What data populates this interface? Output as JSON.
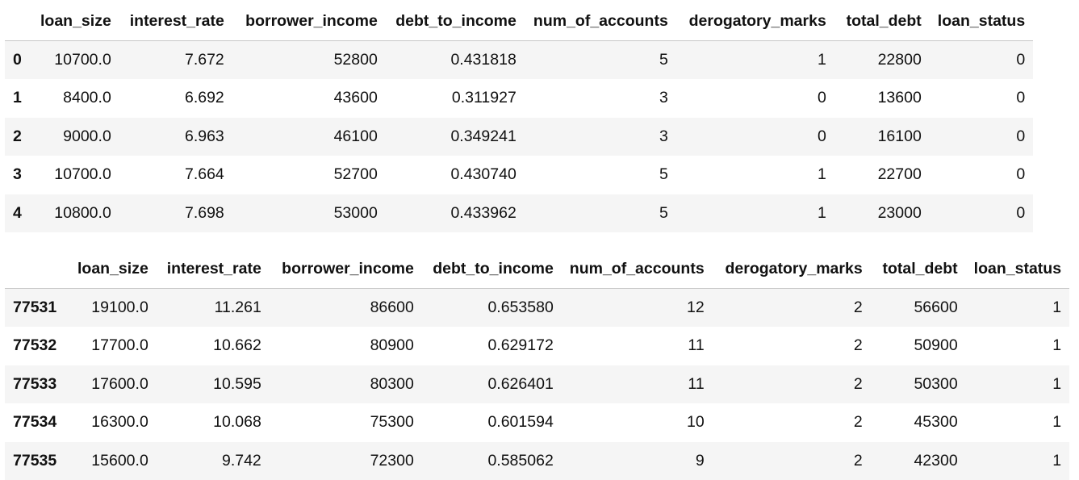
{
  "tables": [
    {
      "columns": [
        "loan_size",
        "interest_rate",
        "borrower_income",
        "debt_to_income",
        "num_of_accounts",
        "derogatory_marks",
        "total_debt",
        "loan_status"
      ],
      "rows": [
        {
          "index": "0",
          "cells": [
            "10700.0",
            "7.672",
            "52800",
            "0.431818",
            "5",
            "1",
            "22800",
            "0"
          ]
        },
        {
          "index": "1",
          "cells": [
            "8400.0",
            "6.692",
            "43600",
            "0.311927",
            "3",
            "0",
            "13600",
            "0"
          ]
        },
        {
          "index": "2",
          "cells": [
            "9000.0",
            "6.963",
            "46100",
            "0.349241",
            "3",
            "0",
            "16100",
            "0"
          ]
        },
        {
          "index": "3",
          "cells": [
            "10700.0",
            "7.664",
            "52700",
            "0.430740",
            "5",
            "1",
            "22700",
            "0"
          ]
        },
        {
          "index": "4",
          "cells": [
            "10800.0",
            "7.698",
            "53000",
            "0.433962",
            "5",
            "1",
            "23000",
            "0"
          ]
        }
      ]
    },
    {
      "columns": [
        "loan_size",
        "interest_rate",
        "borrower_income",
        "debt_to_income",
        "num_of_accounts",
        "derogatory_marks",
        "total_debt",
        "loan_status"
      ],
      "rows": [
        {
          "index": "77531",
          "cells": [
            "19100.0",
            "11.261",
            "86600",
            "0.653580",
            "12",
            "2",
            "56600",
            "1"
          ]
        },
        {
          "index": "77532",
          "cells": [
            "17700.0",
            "10.662",
            "80900",
            "0.629172",
            "11",
            "2",
            "50900",
            "1"
          ]
        },
        {
          "index": "77533",
          "cells": [
            "17600.0",
            "10.595",
            "80300",
            "0.626401",
            "11",
            "2",
            "50300",
            "1"
          ]
        },
        {
          "index": "77534",
          "cells": [
            "16300.0",
            "10.068",
            "75300",
            "0.601594",
            "10",
            "2",
            "45300",
            "1"
          ]
        },
        {
          "index": "77535",
          "cells": [
            "15600.0",
            "9.742",
            "72300",
            "0.585062",
            "9",
            "2",
            "42300",
            "1"
          ]
        }
      ]
    }
  ],
  "chart_data": {
    "type": "table",
    "tables": [
      {
        "columns": [
          "loan_size",
          "interest_rate",
          "borrower_income",
          "debt_to_income",
          "num_of_accounts",
          "derogatory_marks",
          "total_debt",
          "loan_status"
        ],
        "index": [
          "0",
          "1",
          "2",
          "3",
          "4"
        ],
        "values": [
          [
            10700.0,
            7.672,
            52800,
            0.431818,
            5,
            1,
            22800,
            0
          ],
          [
            8400.0,
            6.692,
            43600,
            0.311927,
            3,
            0,
            13600,
            0
          ],
          [
            9000.0,
            6.963,
            46100,
            0.349241,
            3,
            0,
            16100,
            0
          ],
          [
            10700.0,
            7.664,
            52700,
            0.43074,
            5,
            1,
            22700,
            0
          ],
          [
            10800.0,
            7.698,
            53000,
            0.433962,
            5,
            1,
            23000,
            0
          ]
        ]
      },
      {
        "columns": [
          "loan_size",
          "interest_rate",
          "borrower_income",
          "debt_to_income",
          "num_of_accounts",
          "derogatory_marks",
          "total_debt",
          "loan_status"
        ],
        "index": [
          "77531",
          "77532",
          "77533",
          "77534",
          "77535"
        ],
        "values": [
          [
            19100.0,
            11.261,
            86600,
            0.65358,
            12,
            2,
            56600,
            1
          ],
          [
            17700.0,
            10.662,
            80900,
            0.629172,
            11,
            2,
            50900,
            1
          ],
          [
            17600.0,
            10.595,
            80300,
            0.626401,
            11,
            2,
            50300,
            1
          ],
          [
            16300.0,
            10.068,
            75300,
            0.601594,
            10,
            2,
            45300,
            1
          ],
          [
            15600.0,
            9.742,
            72300,
            0.585062,
            9,
            2,
            42300,
            1
          ]
        ]
      }
    ]
  }
}
